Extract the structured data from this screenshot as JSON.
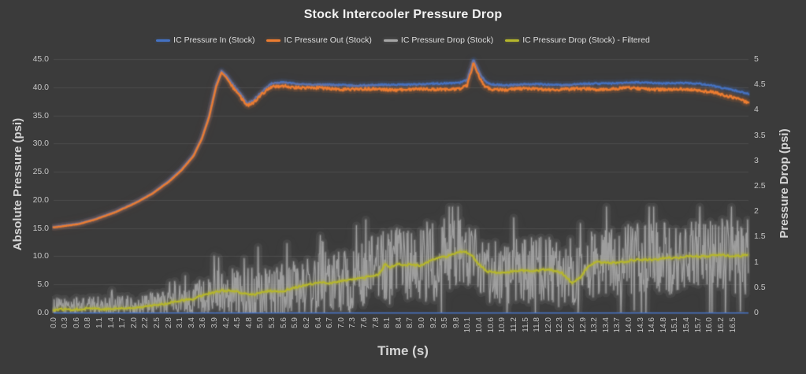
{
  "chart_data": {
    "type": "line",
    "title": "Stock Intercooler Pressure Drop",
    "xlabel": "Time (s)",
    "ylabel_left": "Absolute Pressure (psi)",
    "ylabel_right": "Pressure Drop (psi)",
    "background_color": "#3B3B3B",
    "gridline_color": "#4D4D4D",
    "grid": "horizontal-only",
    "legend_position": "top",
    "x_axis_line_color": "#4977CE",
    "y_left": {
      "min": 0,
      "max": 45,
      "step": 5,
      "tick_labels": [
        "0.0",
        "5.0",
        "10.0",
        "15.0",
        "20.0",
        "25.0",
        "30.0",
        "35.0",
        "40.0",
        "45.0"
      ]
    },
    "y_right": {
      "min": 0,
      "max": 5,
      "step": 0.5,
      "tick_labels": [
        "0",
        "0.5",
        "1",
        "1.5",
        "2",
        "2.5",
        "3",
        "3.5",
        "4",
        "4.5",
        "5"
      ]
    },
    "x_tick_labels": [
      "0.0",
      "0.3",
      "0.6",
      "0.8",
      "1.1",
      "1.4",
      "1.7",
      "2.0",
      "2.2",
      "2.5",
      "2.8",
      "3.1",
      "3.4",
      "3.6",
      "3.9",
      "4.2",
      "4.5",
      "4.8",
      "5.0",
      "5.3",
      "5.6",
      "5.9",
      "6.2",
      "6.4",
      "6.7",
      "7.0",
      "7.3",
      "7.6",
      "7.8",
      "8.1",
      "8.4",
      "8.7",
      "9.0",
      "9.2",
      "9.5",
      "9.8",
      "10.1",
      "10.4",
      "10.6",
      "10.9",
      "11.2",
      "11.5",
      "11.8",
      "12.0",
      "12.3",
      "12.6",
      "12.9",
      "13.2",
      "13.4",
      "13.7",
      "14.0",
      "14.3",
      "14.6",
      "14.8",
      "15.1",
      "15.4",
      "15.7",
      "16.0",
      "16.2",
      "16.5"
    ],
    "x_value_at_last_tick": 16.5,
    "x_plot_end": 16.88,
    "series": [
      {
        "name": "IC Pressure In (Stock)",
        "color": "#4472C4",
        "axis": "left",
        "render": "smooth",
        "noise_band": 0.12,
        "noise_start_x": 4.3,
        "points": [
          [
            0,
            15.2
          ],
          [
            0.3,
            15.5
          ],
          [
            0.6,
            15.8
          ],
          [
            1.0,
            16.6
          ],
          [
            1.5,
            17.9
          ],
          [
            2.0,
            19.6
          ],
          [
            2.4,
            21.2
          ],
          [
            2.8,
            23.4
          ],
          [
            3.1,
            25.4
          ],
          [
            3.4,
            28.0
          ],
          [
            3.6,
            31.0
          ],
          [
            3.78,
            35.0
          ],
          [
            3.95,
            40.5
          ],
          [
            4.08,
            42.9
          ],
          [
            4.2,
            42.1
          ],
          [
            4.35,
            40.6
          ],
          [
            4.55,
            38.8
          ],
          [
            4.7,
            37.2
          ],
          [
            4.85,
            37.7
          ],
          [
            5.05,
            39.1
          ],
          [
            5.3,
            40.6
          ],
          [
            5.6,
            40.9
          ],
          [
            5.9,
            40.6
          ],
          [
            6.4,
            40.4
          ],
          [
            7.0,
            40.4
          ],
          [
            7.5,
            40.3
          ],
          [
            8.0,
            40.4
          ],
          [
            8.5,
            40.5
          ],
          [
            9.0,
            40.5
          ],
          [
            9.5,
            40.7
          ],
          [
            9.85,
            40.8
          ],
          [
            10.05,
            41.3
          ],
          [
            10.2,
            44.8
          ],
          [
            10.38,
            42.0
          ],
          [
            10.5,
            40.9
          ],
          [
            10.65,
            40.5
          ],
          [
            11.0,
            40.4
          ],
          [
            11.5,
            40.5
          ],
          [
            12.0,
            40.5
          ],
          [
            12.5,
            40.4
          ],
          [
            13.0,
            40.6
          ],
          [
            13.5,
            40.7
          ],
          [
            14.0,
            40.8
          ],
          [
            14.5,
            40.8
          ],
          [
            15.0,
            40.7
          ],
          [
            15.4,
            40.7
          ],
          [
            15.7,
            40.6
          ],
          [
            16.0,
            40.3
          ],
          [
            16.3,
            39.8
          ],
          [
            16.6,
            39.3
          ],
          [
            16.88,
            38.8
          ]
        ]
      },
      {
        "name": "IC Pressure Out (Stock)",
        "color": "#ED7D31",
        "axis": "left",
        "render": "smooth",
        "noise_band": 0.22,
        "noise_start_x": 4.3,
        "points": [
          [
            0,
            15.1
          ],
          [
            0.3,
            15.4
          ],
          [
            0.6,
            15.7
          ],
          [
            1.0,
            16.5
          ],
          [
            1.5,
            17.8
          ],
          [
            2.0,
            19.5
          ],
          [
            2.4,
            21.1
          ],
          [
            2.8,
            23.2
          ],
          [
            3.1,
            25.2
          ],
          [
            3.4,
            27.8
          ],
          [
            3.6,
            30.8
          ],
          [
            3.78,
            34.7
          ],
          [
            3.95,
            40.1
          ],
          [
            4.08,
            42.6
          ],
          [
            4.2,
            41.7
          ],
          [
            4.35,
            40.1
          ],
          [
            4.55,
            38.3
          ],
          [
            4.7,
            36.8
          ],
          [
            4.85,
            37.2
          ],
          [
            5.05,
            38.6
          ],
          [
            5.3,
            40.0
          ],
          [
            5.6,
            40.3
          ],
          [
            5.9,
            40.0
          ],
          [
            6.4,
            39.8
          ],
          [
            7.0,
            39.7
          ],
          [
            7.5,
            39.6
          ],
          [
            8.0,
            39.6
          ],
          [
            8.5,
            39.6
          ],
          [
            9.0,
            39.6
          ],
          [
            9.5,
            39.7
          ],
          [
            9.85,
            39.7
          ],
          [
            10.05,
            40.3
          ],
          [
            10.2,
            44.1
          ],
          [
            10.38,
            41.2
          ],
          [
            10.5,
            40.0
          ],
          [
            10.65,
            39.7
          ],
          [
            11.0,
            39.6
          ],
          [
            11.5,
            39.7
          ],
          [
            12.0,
            39.7
          ],
          [
            12.5,
            39.6
          ],
          [
            13.0,
            39.7
          ],
          [
            13.5,
            39.7
          ],
          [
            14.0,
            39.8
          ],
          [
            14.5,
            39.7
          ],
          [
            15.0,
            39.6
          ],
          [
            15.4,
            39.6
          ],
          [
            15.7,
            39.5
          ],
          [
            16.0,
            39.2
          ],
          [
            16.3,
            38.5
          ],
          [
            16.6,
            37.9
          ],
          [
            16.88,
            37.3
          ]
        ]
      },
      {
        "name": "IC Pressure Drop (Stock)",
        "color": "#A6A6A6",
        "axis": "right",
        "render": "noisy",
        "clamp": [
          0,
          2.08
        ],
        "base_points": [
          [
            0,
            0.12
          ],
          [
            0.5,
            0.13
          ],
          [
            1.0,
            0.14
          ],
          [
            1.5,
            0.13
          ],
          [
            2.0,
            0.15
          ],
          [
            2.5,
            0.2
          ],
          [
            3.0,
            0.26
          ],
          [
            3.5,
            0.32
          ],
          [
            4.0,
            0.45
          ],
          [
            4.5,
            0.42
          ],
          [
            5.0,
            0.4
          ],
          [
            5.5,
            0.46
          ],
          [
            6.0,
            0.55
          ],
          [
            6.5,
            0.58
          ],
          [
            7.0,
            0.64
          ],
          [
            7.5,
            0.72
          ],
          [
            8.0,
            0.9
          ],
          [
            8.5,
            0.93
          ],
          [
            9.0,
            0.96
          ],
          [
            9.5,
            1.1
          ],
          [
            10.0,
            1.15
          ],
          [
            10.3,
            1.0
          ],
          [
            10.6,
            0.8
          ],
          [
            11.0,
            0.8
          ],
          [
            11.5,
            0.83
          ],
          [
            12.0,
            0.84
          ],
          [
            12.5,
            0.62
          ],
          [
            13.0,
            0.93
          ],
          [
            13.5,
            0.97
          ],
          [
            14.0,
            1.02
          ],
          [
            14.5,
            1.05
          ],
          [
            15.0,
            1.08
          ],
          [
            15.5,
            1.1
          ],
          [
            16.0,
            1.12
          ],
          [
            16.5,
            1.12
          ],
          [
            16.88,
            1.13
          ]
        ],
        "noise_amplitude_points": [
          [
            0,
            0.16
          ],
          [
            1.0,
            0.17
          ],
          [
            2.0,
            0.2
          ],
          [
            2.8,
            0.24
          ],
          [
            3.5,
            0.32
          ],
          [
            4.0,
            0.42
          ],
          [
            4.5,
            0.46
          ],
          [
            5.0,
            0.5
          ],
          [
            5.5,
            0.5
          ],
          [
            6.0,
            0.55
          ],
          [
            6.5,
            0.6
          ],
          [
            7.0,
            0.6
          ],
          [
            7.5,
            0.66
          ],
          [
            8.0,
            0.75
          ],
          [
            8.5,
            0.74
          ],
          [
            9.0,
            0.8
          ],
          [
            9.5,
            0.85
          ],
          [
            10.0,
            0.7
          ],
          [
            10.5,
            0.6
          ],
          [
            11.0,
            0.62
          ],
          [
            11.5,
            0.66
          ],
          [
            12.0,
            0.66
          ],
          [
            12.5,
            0.6
          ],
          [
            13.0,
            0.66
          ],
          [
            13.5,
            0.66
          ],
          [
            14.0,
            0.72
          ],
          [
            14.5,
            0.72
          ],
          [
            15.0,
            0.72
          ],
          [
            15.5,
            0.72
          ],
          [
            16.0,
            0.74
          ],
          [
            16.5,
            0.76
          ],
          [
            16.88,
            0.78
          ]
        ]
      },
      {
        "name": "IC Pressure Drop (Stock) - Filtered",
        "color": "#B6B72C",
        "axis": "right",
        "render": "smooth",
        "noise_band": 0.018,
        "noise_start_x": 0,
        "points": [
          [
            0,
            0.05
          ],
          [
            0.5,
            0.07
          ],
          [
            1.0,
            0.08
          ],
          [
            1.5,
            0.07
          ],
          [
            2.0,
            0.1
          ],
          [
            2.5,
            0.15
          ],
          [
            3.0,
            0.22
          ],
          [
            3.4,
            0.28
          ],
          [
            3.8,
            0.38
          ],
          [
            4.1,
            0.44
          ],
          [
            4.3,
            0.42
          ],
          [
            4.6,
            0.38
          ],
          [
            4.9,
            0.36
          ],
          [
            5.1,
            0.4
          ],
          [
            5.35,
            0.44
          ],
          [
            5.55,
            0.41
          ],
          [
            5.8,
            0.48
          ],
          [
            6.0,
            0.52
          ],
          [
            6.2,
            0.56
          ],
          [
            6.5,
            0.58
          ],
          [
            6.8,
            0.6
          ],
          [
            7.0,
            0.62
          ],
          [
            7.3,
            0.66
          ],
          [
            7.6,
            0.7
          ],
          [
            7.9,
            0.74
          ],
          [
            8.05,
            0.95
          ],
          [
            8.2,
            0.9
          ],
          [
            8.35,
            0.97
          ],
          [
            8.5,
            0.92
          ],
          [
            8.7,
            0.95
          ],
          [
            8.9,
            0.93
          ],
          [
            9.1,
            1.0
          ],
          [
            9.4,
            1.08
          ],
          [
            9.7,
            1.15
          ],
          [
            9.95,
            1.2
          ],
          [
            10.15,
            1.15
          ],
          [
            10.35,
            0.95
          ],
          [
            10.55,
            0.8
          ],
          [
            10.75,
            0.78
          ],
          [
            11.0,
            0.8
          ],
          [
            11.3,
            0.83
          ],
          [
            11.6,
            0.82
          ],
          [
            11.9,
            0.84
          ],
          [
            12.1,
            0.83
          ],
          [
            12.35,
            0.8
          ],
          [
            12.6,
            0.58
          ],
          [
            12.8,
            0.68
          ],
          [
            13.0,
            0.93
          ],
          [
            13.2,
            1.0
          ],
          [
            13.5,
            0.97
          ],
          [
            13.8,
            1.0
          ],
          [
            14.1,
            1.03
          ],
          [
            14.4,
            1.05
          ],
          [
            14.7,
            1.06
          ],
          [
            15.0,
            1.08
          ],
          [
            15.3,
            1.1
          ],
          [
            15.6,
            1.1
          ],
          [
            15.9,
            1.12
          ],
          [
            16.2,
            1.13
          ],
          [
            16.5,
            1.12
          ],
          [
            16.88,
            1.13
          ]
        ]
      }
    ]
  }
}
